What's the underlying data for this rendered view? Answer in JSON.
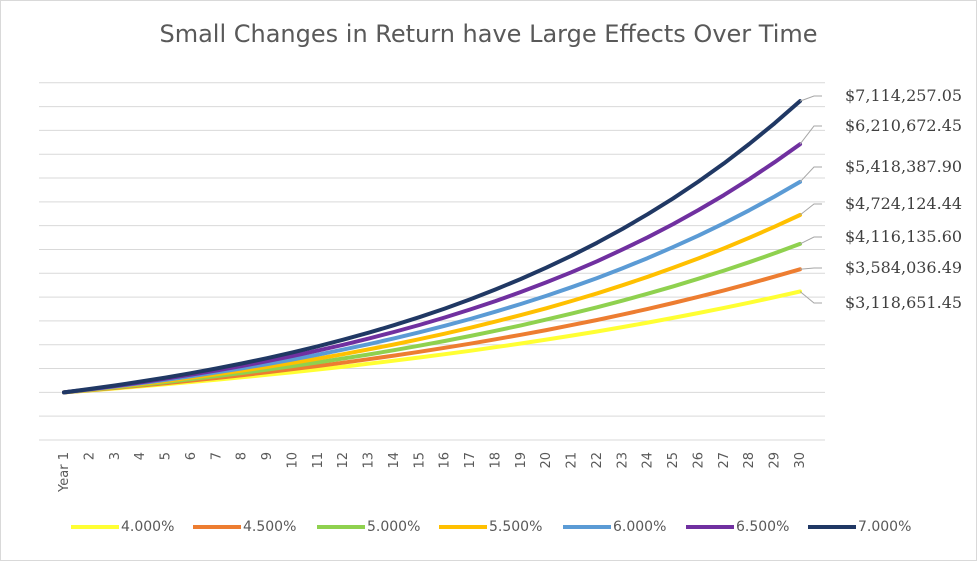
{
  "chart_data": {
    "type": "line",
    "title": "Small Changes in Return have Large Effects Over Time",
    "x": [
      "Year 1",
      "2",
      "3",
      "4",
      "5",
      "6",
      "7",
      "8",
      "9",
      "10",
      "11",
      "12",
      "13",
      "14",
      "15",
      "16",
      "17",
      "18",
      "19",
      "20",
      "21",
      "22",
      "23",
      "24",
      "25",
      "26",
      "27",
      "28",
      "29",
      "30"
    ],
    "grid": true,
    "legend": "bottom",
    "y_axis_labels_shown": false,
    "series": [
      {
        "name": "4.000%",
        "color": "#ffff33",
        "values": [
          1000000,
          1040000,
          1081600,
          1124864,
          1169859,
          1216653,
          1265319,
          1315932,
          1368569,
          1423312,
          1480244,
          1539454,
          1601032,
          1665074,
          1731676,
          1800944,
          1872981,
          1947900,
          2025817,
          2106849,
          2191123,
          2278768,
          2369919,
          2464716,
          2563304,
          2665836,
          2772470,
          2883369,
          2998703,
          3118651.45
        ]
      },
      {
        "name": "4.500%",
        "color": "#ed7d31",
        "values": [
          1000000,
          1045000,
          1092025,
          1141166,
          1192519,
          1246182,
          1302260,
          1360862,
          1422101,
          1486095,
          1552969,
          1622853,
          1695881,
          1772196,
          1851945,
          1935282,
          2022370,
          2113377,
          2208479,
          2307860,
          2411714,
          2520241,
          2633652,
          2752166,
          2876014,
          3005434,
          3140679,
          3282010,
          3429700,
          3584036.49
        ]
      },
      {
        "name": "5.000%",
        "color": "#8fd14f",
        "values": [
          1000000,
          1050000,
          1102500,
          1157625,
          1215506,
          1276282,
          1340096,
          1407100,
          1477455,
          1551328,
          1628895,
          1710339,
          1795856,
          1885649,
          1979932,
          2078928,
          2182875,
          2292018,
          2406619,
          2526950,
          2653298,
          2785963,
          2925261,
          3071524,
          3225100,
          3386355,
          3555673,
          3733456,
          3920129,
          4116135.6
        ]
      },
      {
        "name": "5.500%",
        "color": "#ffc000",
        "values": [
          1000000,
          1055000,
          1113025,
          1174241,
          1238825,
          1306960,
          1378843,
          1454679,
          1534687,
          1619094,
          1708144,
          1802092,
          1901207,
          2005774,
          2116091,
          2232476,
          2355263,
          2484802,
          2621466,
          2765647,
          2917757,
          3078234,
          3247537,
          3426152,
          3614590,
          3813392,
          4023129,
          4244401,
          4477843,
          4724124.44
        ]
      },
      {
        "name": "6.000%",
        "color": "#5b9bd5",
        "values": [
          1000000,
          1060000,
          1123600,
          1191016,
          1262477,
          1338226,
          1418519,
          1503630,
          1593848,
          1689479,
          1790848,
          1898299,
          2012196,
          2132928,
          2260904,
          2396558,
          2540352,
          2692773,
          2854339,
          3025600,
          3207135,
          3399564,
          3603537,
          3819750,
          4048935,
          4291871,
          4549383,
          4822346,
          5111687,
          5418387.9
        ]
      },
      {
        "name": "6.500%",
        "color": "#7030a0",
        "values": [
          1000000,
          1065000,
          1134225,
          1207950,
          1286466,
          1370087,
          1459142,
          1553987,
          1654996,
          1762570,
          1877137,
          1999151,
          2129096,
          2267487,
          2414874,
          2571841,
          2739011,
          2917046,
          3106654,
          3308587,
          3523645,
          3752682,
          3996606,
          4256386,
          4533051,
          4827699,
          5141500,
          5475697,
          5831617,
          6210672.45
        ]
      },
      {
        "name": "7.000%",
        "color": "#203864",
        "values": [
          1000000,
          1070000,
          1144900,
          1225043,
          1310796,
          1402552,
          1500730,
          1605781,
          1718186,
          1838459,
          1967151,
          2104852,
          2252192,
          2409845,
          2578534,
          2759032,
          2952164,
          3158815,
          3379932,
          3616528,
          3869684,
          4140562,
          4430402,
          4740530,
          5072367,
          5427433,
          5807353,
          6213868,
          6648838,
          7114257.05
        ]
      }
    ],
    "end_labels": [
      "$7,114,257.05",
      "$6,210,672.45",
      "$5,418,387.90",
      "$4,724,124.44",
      "$4,116,135.60",
      "$3,584,036.49",
      "$3,118,651.45"
    ]
  }
}
